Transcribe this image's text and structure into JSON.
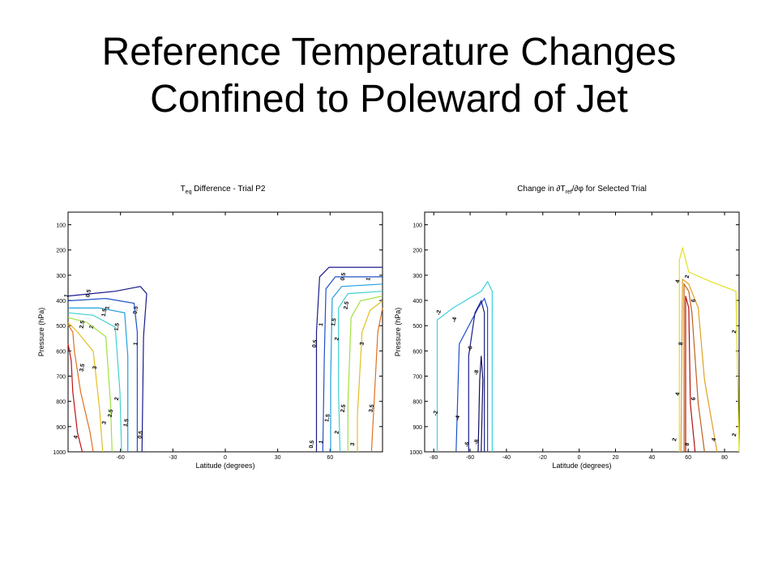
{
  "slide": {
    "title_line1": "Reference Temperature Changes",
    "title_line2": "Confined to Poleward of Jet"
  },
  "chart_data": [
    {
      "type": "contour",
      "title": "T",
      "title_sub": "eq",
      "title_rest": " Difference - Trial P2",
      "xlabel": "Latitude (degrees)",
      "ylabel": "Pressure (hPa)",
      "xlim": [
        -90,
        90
      ],
      "ylim": [
        1000,
        50
      ],
      "y_reversed": true,
      "xticks": [
        -60,
        -30,
        0,
        30,
        60
      ],
      "yticks": [
        100,
        200,
        300,
        400,
        500,
        600,
        700,
        800,
        900,
        1000
      ],
      "grid": false,
      "contours": [
        {
          "level": 0.5,
          "color": "#1a1a8c",
          "region": "south",
          "labels": [
            "0.5",
            "0.5",
            "0.5"
          ]
        },
        {
          "level": 1,
          "color": "#2050c8",
          "region": "south",
          "labels": [
            "1",
            "1",
            "1"
          ]
        },
        {
          "level": 1.5,
          "color": "#20a0e0",
          "region": "south",
          "labels": [
            "1.5",
            "1.5",
            "1.5"
          ]
        },
        {
          "level": 2,
          "color": "#40d0d0",
          "region": "south",
          "labels": [
            "2",
            "2"
          ]
        },
        {
          "level": 2.5,
          "color": "#a0e040",
          "region": "south",
          "labels": [
            "2.5",
            "2.5"
          ]
        },
        {
          "level": 3,
          "color": "#e0c020",
          "region": "south",
          "labels": [
            "3",
            "3"
          ]
        },
        {
          "level": 3.5,
          "color": "#e07020",
          "region": "south",
          "labels": [
            "3.5"
          ]
        },
        {
          "level": 4,
          "color": "#c01010",
          "region": "south",
          "labels": [
            "4"
          ]
        },
        {
          "level": 0.5,
          "color": "#1a1a8c",
          "region": "north",
          "labels": [
            "0.5",
            "0.5",
            "0.5"
          ]
        },
        {
          "level": 1,
          "color": "#2050c8",
          "region": "north",
          "labels": [
            "1",
            "1",
            "1"
          ]
        },
        {
          "level": 1.5,
          "color": "#20a0e0",
          "region": "north",
          "labels": [
            "1.5",
            "1.5"
          ]
        },
        {
          "level": 2,
          "color": "#40d0d0",
          "region": "north",
          "labels": [
            "2",
            "2"
          ]
        },
        {
          "level": 2.5,
          "color": "#a0e040",
          "region": "north",
          "labels": [
            "2.5",
            "2.5"
          ]
        },
        {
          "level": 3,
          "color": "#e0c020",
          "region": "north",
          "labels": [
            "3",
            "3"
          ]
        },
        {
          "level": 3.5,
          "color": "#e07020",
          "region": "north",
          "labels": [
            "3.5"
          ]
        }
      ]
    },
    {
      "type": "contour",
      "title": "Change in ∂T",
      "title_sub": "ref",
      "title_rest": "/∂φ for Selected Trial",
      "xlabel": "Latitude (degrees)",
      "ylabel": "Pressure (hPa)",
      "xlim": [
        -85,
        88
      ],
      "ylim": [
        1000,
        50
      ],
      "y_reversed": true,
      "xticks": [
        -80,
        -60,
        -40,
        -20,
        0,
        20,
        40,
        60,
        80
      ],
      "yticks": [
        100,
        200,
        300,
        400,
        500,
        600,
        700,
        800,
        900,
        1000
      ],
      "grid": false,
      "contours": [
        {
          "level": -2,
          "color": "#40d0e0",
          "region": "south",
          "labels": [
            "-2",
            "-2"
          ]
        },
        {
          "level": -4,
          "color": "#2050c8",
          "region": "south",
          "labels": [
            "-4",
            "-4"
          ]
        },
        {
          "level": -6,
          "color": "#1a1a8c",
          "region": "south",
          "labels": [
            "-6",
            "-6"
          ]
        },
        {
          "level": -8,
          "color": "#101060",
          "region": "south",
          "labels": [
            "-8",
            "-8"
          ]
        },
        {
          "level": 2,
          "color": "#e0e020",
          "region": "north",
          "labels": [
            "2",
            "2",
            "2",
            "2"
          ]
        },
        {
          "level": 4,
          "color": "#e0a020",
          "region": "north",
          "labels": [
            "4",
            "4",
            "4"
          ]
        },
        {
          "level": 6,
          "color": "#c06020",
          "region": "north",
          "labels": [
            "6",
            "6"
          ]
        },
        {
          "level": 8,
          "color": "#b01010",
          "region": "north",
          "labels": [
            "8",
            "8"
          ]
        }
      ]
    }
  ]
}
